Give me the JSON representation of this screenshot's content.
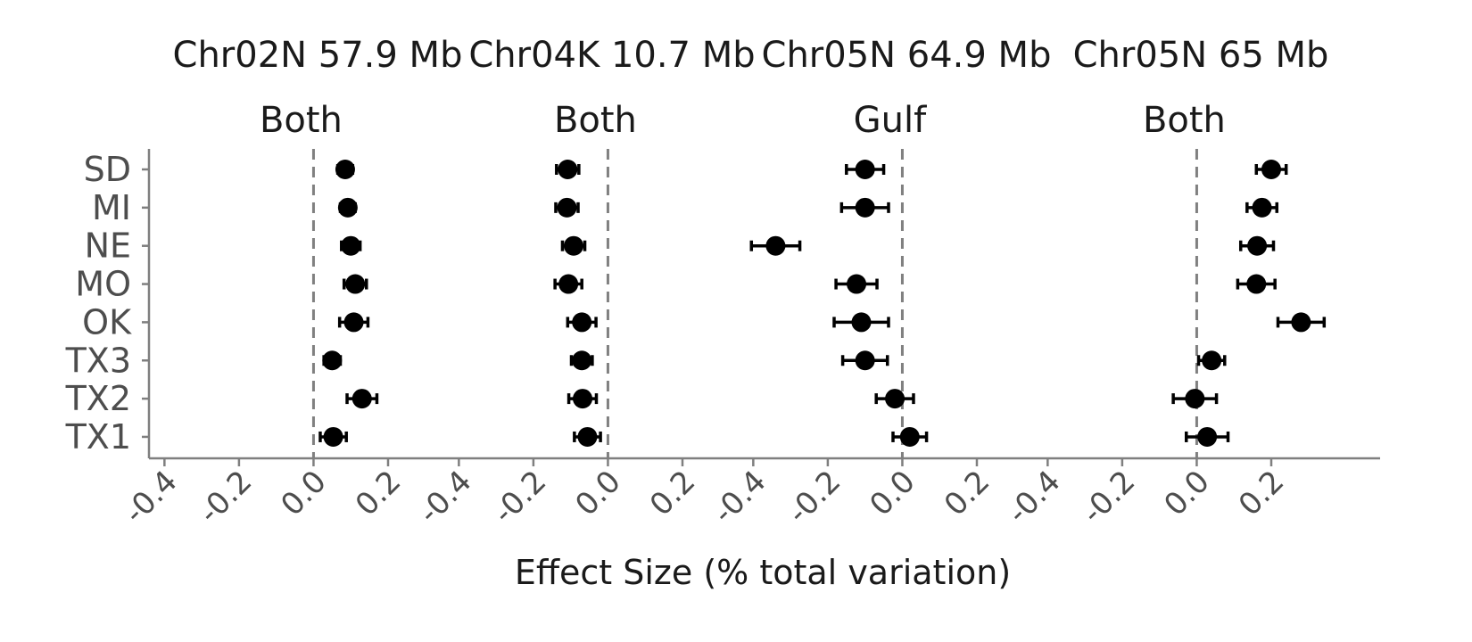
{
  "chart_data": {
    "type": "scatter",
    "xlabel": "Effect Size (% total variation)",
    "categories": [
      "SD",
      "MI",
      "NE",
      "MO",
      "OK",
      "TX3",
      "TX2",
      "TX1"
    ],
    "x_ticks": [
      "-0.4",
      "-0.2",
      "0.0",
      "0.2"
    ],
    "xlim": [
      -0.42,
      0.37
    ],
    "reference_line": 0.0,
    "colors": {
      "point": "#000000",
      "reference": "#808080",
      "axis": "#7f7f7f",
      "tick_text": "#4d4d4d"
    },
    "panels": [
      {
        "title": "Chr02N 57.9 Mb",
        "subtitle": "Both",
        "points": [
          {
            "category": "SD",
            "estimate": 0.085,
            "lower": 0.065,
            "upper": 0.105
          },
          {
            "category": "MI",
            "estimate": 0.092,
            "lower": 0.072,
            "upper": 0.112
          },
          {
            "category": "NE",
            "estimate": 0.1,
            "lower": 0.075,
            "upper": 0.125
          },
          {
            "category": "MO",
            "estimate": 0.112,
            "lower": 0.082,
            "upper": 0.142
          },
          {
            "category": "OK",
            "estimate": 0.108,
            "lower": 0.07,
            "upper": 0.146
          },
          {
            "category": "TX3",
            "estimate": 0.05,
            "lower": 0.028,
            "upper": 0.072
          },
          {
            "category": "TX2",
            "estimate": 0.13,
            "lower": 0.09,
            "upper": 0.17
          },
          {
            "category": "TX1",
            "estimate": 0.053,
            "lower": 0.018,
            "upper": 0.088
          }
        ]
      },
      {
        "title": "Chr04K 10.7 Mb",
        "subtitle": "Both",
        "points": [
          {
            "category": "SD",
            "estimate": -0.108,
            "lower": -0.138,
            "upper": -0.078
          },
          {
            "category": "MI",
            "estimate": -0.11,
            "lower": -0.14,
            "upper": -0.08
          },
          {
            "category": "NE",
            "estimate": -0.092,
            "lower": -0.122,
            "upper": -0.062
          },
          {
            "category": "MO",
            "estimate": -0.106,
            "lower": -0.142,
            "upper": -0.07
          },
          {
            "category": "OK",
            "estimate": -0.07,
            "lower": -0.108,
            "upper": -0.032
          },
          {
            "category": "TX3",
            "estimate": -0.07,
            "lower": -0.098,
            "upper": -0.042
          },
          {
            "category": "TX2",
            "estimate": -0.068,
            "lower": -0.105,
            "upper": -0.031
          },
          {
            "category": "TX1",
            "estimate": -0.055,
            "lower": -0.09,
            "upper": -0.02
          }
        ]
      },
      {
        "title": "Chr05N 64.9 Mb",
        "subtitle": "Gulf",
        "points": [
          {
            "category": "SD",
            "estimate": -0.1,
            "lower": -0.15,
            "upper": -0.05
          },
          {
            "category": "MI",
            "estimate": -0.1,
            "lower": -0.163,
            "upper": -0.037
          },
          {
            "category": "NE",
            "estimate": -0.34,
            "lower": -0.405,
            "upper": -0.275
          },
          {
            "category": "MO",
            "estimate": -0.123,
            "lower": -0.178,
            "upper": -0.068
          },
          {
            "category": "OK",
            "estimate": -0.11,
            "lower": -0.183,
            "upper": -0.037
          },
          {
            "category": "TX3",
            "estimate": -0.1,
            "lower": -0.16,
            "upper": -0.04
          },
          {
            "category": "TX2",
            "estimate": -0.02,
            "lower": -0.07,
            "upper": 0.03
          },
          {
            "category": "TX1",
            "estimate": 0.02,
            "lower": -0.025,
            "upper": 0.065
          }
        ]
      },
      {
        "title": "Chr05N 65 Mb",
        "subtitle": "Both",
        "points": [
          {
            "category": "SD",
            "estimate": 0.2,
            "lower": 0.16,
            "upper": 0.24
          },
          {
            "category": "MI",
            "estimate": 0.175,
            "lower": 0.135,
            "upper": 0.215
          },
          {
            "category": "NE",
            "estimate": 0.162,
            "lower": 0.118,
            "upper": 0.206
          },
          {
            "category": "MO",
            "estimate": 0.16,
            "lower": 0.11,
            "upper": 0.21
          },
          {
            "category": "OK",
            "estimate": 0.28,
            "lower": 0.218,
            "upper": 0.342
          },
          {
            "category": "TX3",
            "estimate": 0.04,
            "lower": 0.005,
            "upper": 0.075
          },
          {
            "category": "TX2",
            "estimate": -0.005,
            "lower": -0.063,
            "upper": 0.053
          },
          {
            "category": "TX1",
            "estimate": 0.028,
            "lower": -0.028,
            "upper": 0.084
          }
        ]
      }
    ]
  }
}
